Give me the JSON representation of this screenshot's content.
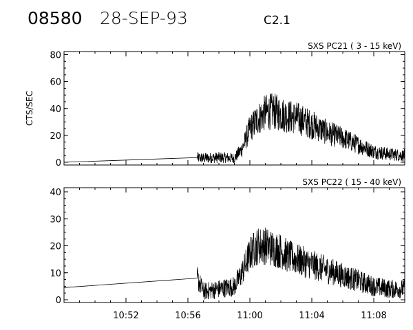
{
  "header": {
    "event_id": "08580",
    "date": "28-SEP-93",
    "flare_class": "C2.1"
  },
  "chart_data": [
    {
      "type": "line",
      "title": "SXS PC21  (  3 - 15 keV)",
      "ylabel": "CTS/SEC",
      "xlabel": "",
      "xlim": [
        "10:48",
        "11:10"
      ],
      "ylim": [
        0,
        80
      ],
      "yticks": [
        0,
        20,
        40,
        60,
        80
      ],
      "grid": false,
      "series": [
        {
          "x": [
            "10:48",
            "10:56.6",
            "10:57",
            "10:58",
            "10:59",
            "10:59.5",
            "11:00",
            "11:00.5",
            "11:01",
            "11:01.5",
            "11:02",
            "11:02.5",
            "11:03",
            "11:04",
            "11:05",
            "11:06",
            "11:07",
            "11:08",
            "11:09",
            "11:10"
          ],
          "values": [
            0,
            3.5,
            3,
            3.5,
            3,
            10,
            25,
            32,
            37,
            38,
            36,
            34,
            33,
            28,
            22,
            18,
            13,
            8,
            6,
            5
          ]
        }
      ]
    },
    {
      "type": "line",
      "title": "SXS PC22  ( 15 - 40 keV)",
      "ylabel": "",
      "xlabel": "",
      "xlim": [
        "10:48",
        "11:10"
      ],
      "ylim": [
        0,
        40
      ],
      "yticks": [
        0,
        10,
        20,
        30,
        40
      ],
      "grid": false,
      "xticks": [
        "10:52",
        "10:56",
        "11:00",
        "11:04",
        "11:08"
      ],
      "series": [
        {
          "x": [
            "10:48",
            "10:56.6",
            "10:57",
            "10:58",
            "10:59",
            "10:59.5",
            "11:00",
            "11:00.5",
            "11:01",
            "11:01.5",
            "11:02",
            "11:02.5",
            "11:03",
            "11:04",
            "11:05",
            "11:06",
            "11:07",
            "11:08",
            "11:09",
            "11:10"
          ],
          "values": [
            4.5,
            8,
            3,
            4,
            5,
            10,
            17,
            20,
            20,
            19,
            18,
            16,
            15,
            13,
            11,
            9,
            7,
            5,
            4,
            4
          ]
        }
      ]
    }
  ]
}
